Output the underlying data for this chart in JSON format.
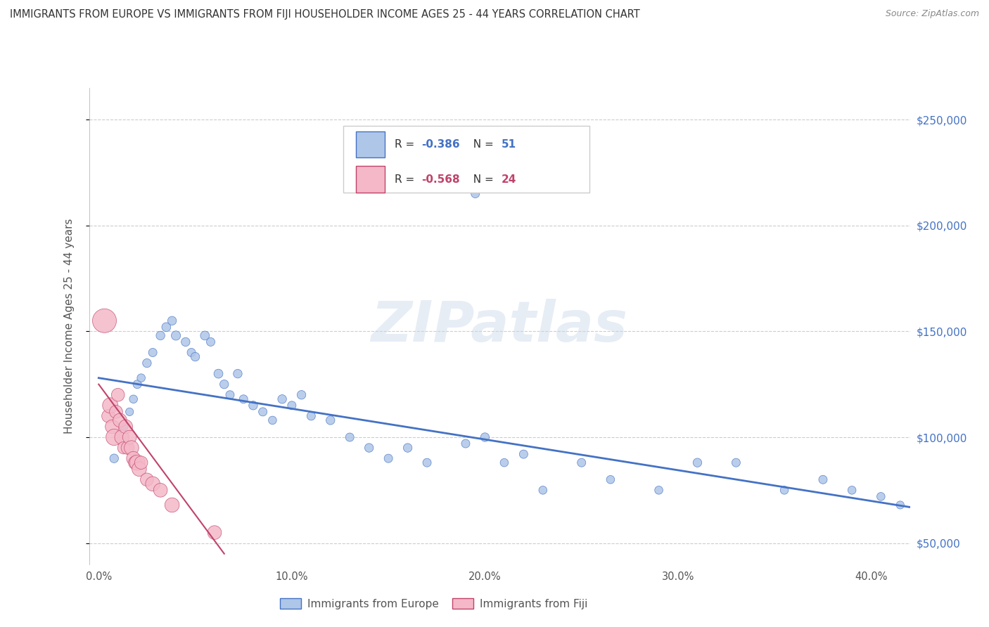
{
  "title": "IMMIGRANTS FROM EUROPE VS IMMIGRANTS FROM FIJI HOUSEHOLDER INCOME AGES 25 - 44 YEARS CORRELATION CHART",
  "source": "Source: ZipAtlas.com",
  "ylabel": "Householder Income Ages 25 - 44 years",
  "xlabel_ticks": [
    "0.0%",
    "10.0%",
    "20.0%",
    "30.0%",
    "40.0%"
  ],
  "xlabel_vals": [
    0.0,
    0.1,
    0.2,
    0.3,
    0.4
  ],
  "ytick_vals": [
    50000,
    100000,
    150000,
    200000,
    250000
  ],
  "ytick_labels": [
    "$50,000",
    "$100,000",
    "$150,000",
    "$200,000",
    "$250,000"
  ],
  "ylim": [
    40000,
    265000
  ],
  "xlim": [
    -0.005,
    0.42
  ],
  "background_color": "#ffffff",
  "watermark": "ZIPatlas",
  "legend1_color": "#aec6e8",
  "legend2_color": "#f4b8c8",
  "line1_color": "#4472c4",
  "line2_color": "#c0436a",
  "europe_color": "#aec6e8",
  "europe_edge": "#4472c4",
  "fiji_color": "#f4b8c8",
  "fiji_edge": "#c0436a",
  "europe_x": [
    0.008,
    0.013,
    0.016,
    0.018,
    0.02,
    0.022,
    0.025,
    0.028,
    0.032,
    0.035,
    0.038,
    0.04,
    0.045,
    0.048,
    0.05,
    0.055,
    0.058,
    0.062,
    0.065,
    0.068,
    0.072,
    0.075,
    0.08,
    0.085,
    0.09,
    0.095,
    0.1,
    0.105,
    0.11,
    0.12,
    0.13,
    0.14,
    0.15,
    0.16,
    0.17,
    0.19,
    0.2,
    0.21,
    0.22,
    0.23,
    0.25,
    0.265,
    0.29,
    0.31,
    0.33,
    0.355,
    0.375,
    0.39,
    0.405,
    0.415,
    0.195
  ],
  "europe_y": [
    90000,
    105000,
    112000,
    118000,
    125000,
    128000,
    135000,
    140000,
    148000,
    152000,
    155000,
    148000,
    145000,
    140000,
    138000,
    148000,
    145000,
    130000,
    125000,
    120000,
    130000,
    118000,
    115000,
    112000,
    108000,
    118000,
    115000,
    120000,
    110000,
    108000,
    100000,
    95000,
    90000,
    95000,
    88000,
    97000,
    100000,
    88000,
    92000,
    75000,
    88000,
    80000,
    75000,
    88000,
    88000,
    75000,
    80000,
    75000,
    72000,
    68000,
    215000
  ],
  "europe_size": [
    80,
    75,
    65,
    70,
    75,
    70,
    80,
    75,
    80,
    85,
    80,
    90,
    80,
    75,
    80,
    85,
    75,
    85,
    80,
    75,
    80,
    75,
    80,
    75,
    70,
    80,
    75,
    80,
    75,
    80,
    75,
    80,
    75,
    80,
    75,
    75,
    80,
    70,
    75,
    70,
    75,
    70,
    70,
    80,
    75,
    70,
    75,
    70,
    70,
    65,
    75
  ],
  "fiji_x": [
    0.003,
    0.005,
    0.006,
    0.007,
    0.008,
    0.009,
    0.01,
    0.011,
    0.012,
    0.013,
    0.014,
    0.015,
    0.016,
    0.017,
    0.018,
    0.019,
    0.02,
    0.021,
    0.022,
    0.025,
    0.028,
    0.032,
    0.038,
    0.06
  ],
  "fiji_y": [
    155000,
    110000,
    115000,
    105000,
    100000,
    112000,
    120000,
    108000,
    100000,
    95000,
    105000,
    95000,
    100000,
    95000,
    90000,
    88000,
    88000,
    85000,
    88000,
    80000,
    78000,
    75000,
    68000,
    55000
  ],
  "fiji_size": [
    600,
    180,
    250,
    200,
    280,
    180,
    180,
    200,
    220,
    160,
    200,
    180,
    200,
    220,
    200,
    200,
    250,
    220,
    180,
    180,
    220,
    200,
    220,
    200
  ],
  "line1_x0": 0.0,
  "line1_x1": 0.42,
  "line1_y0": 128000,
  "line1_y1": 67000,
  "line2_x0": 0.0,
  "line2_x1": 0.065,
  "line2_y0": 125000,
  "line2_y1": 45000
}
